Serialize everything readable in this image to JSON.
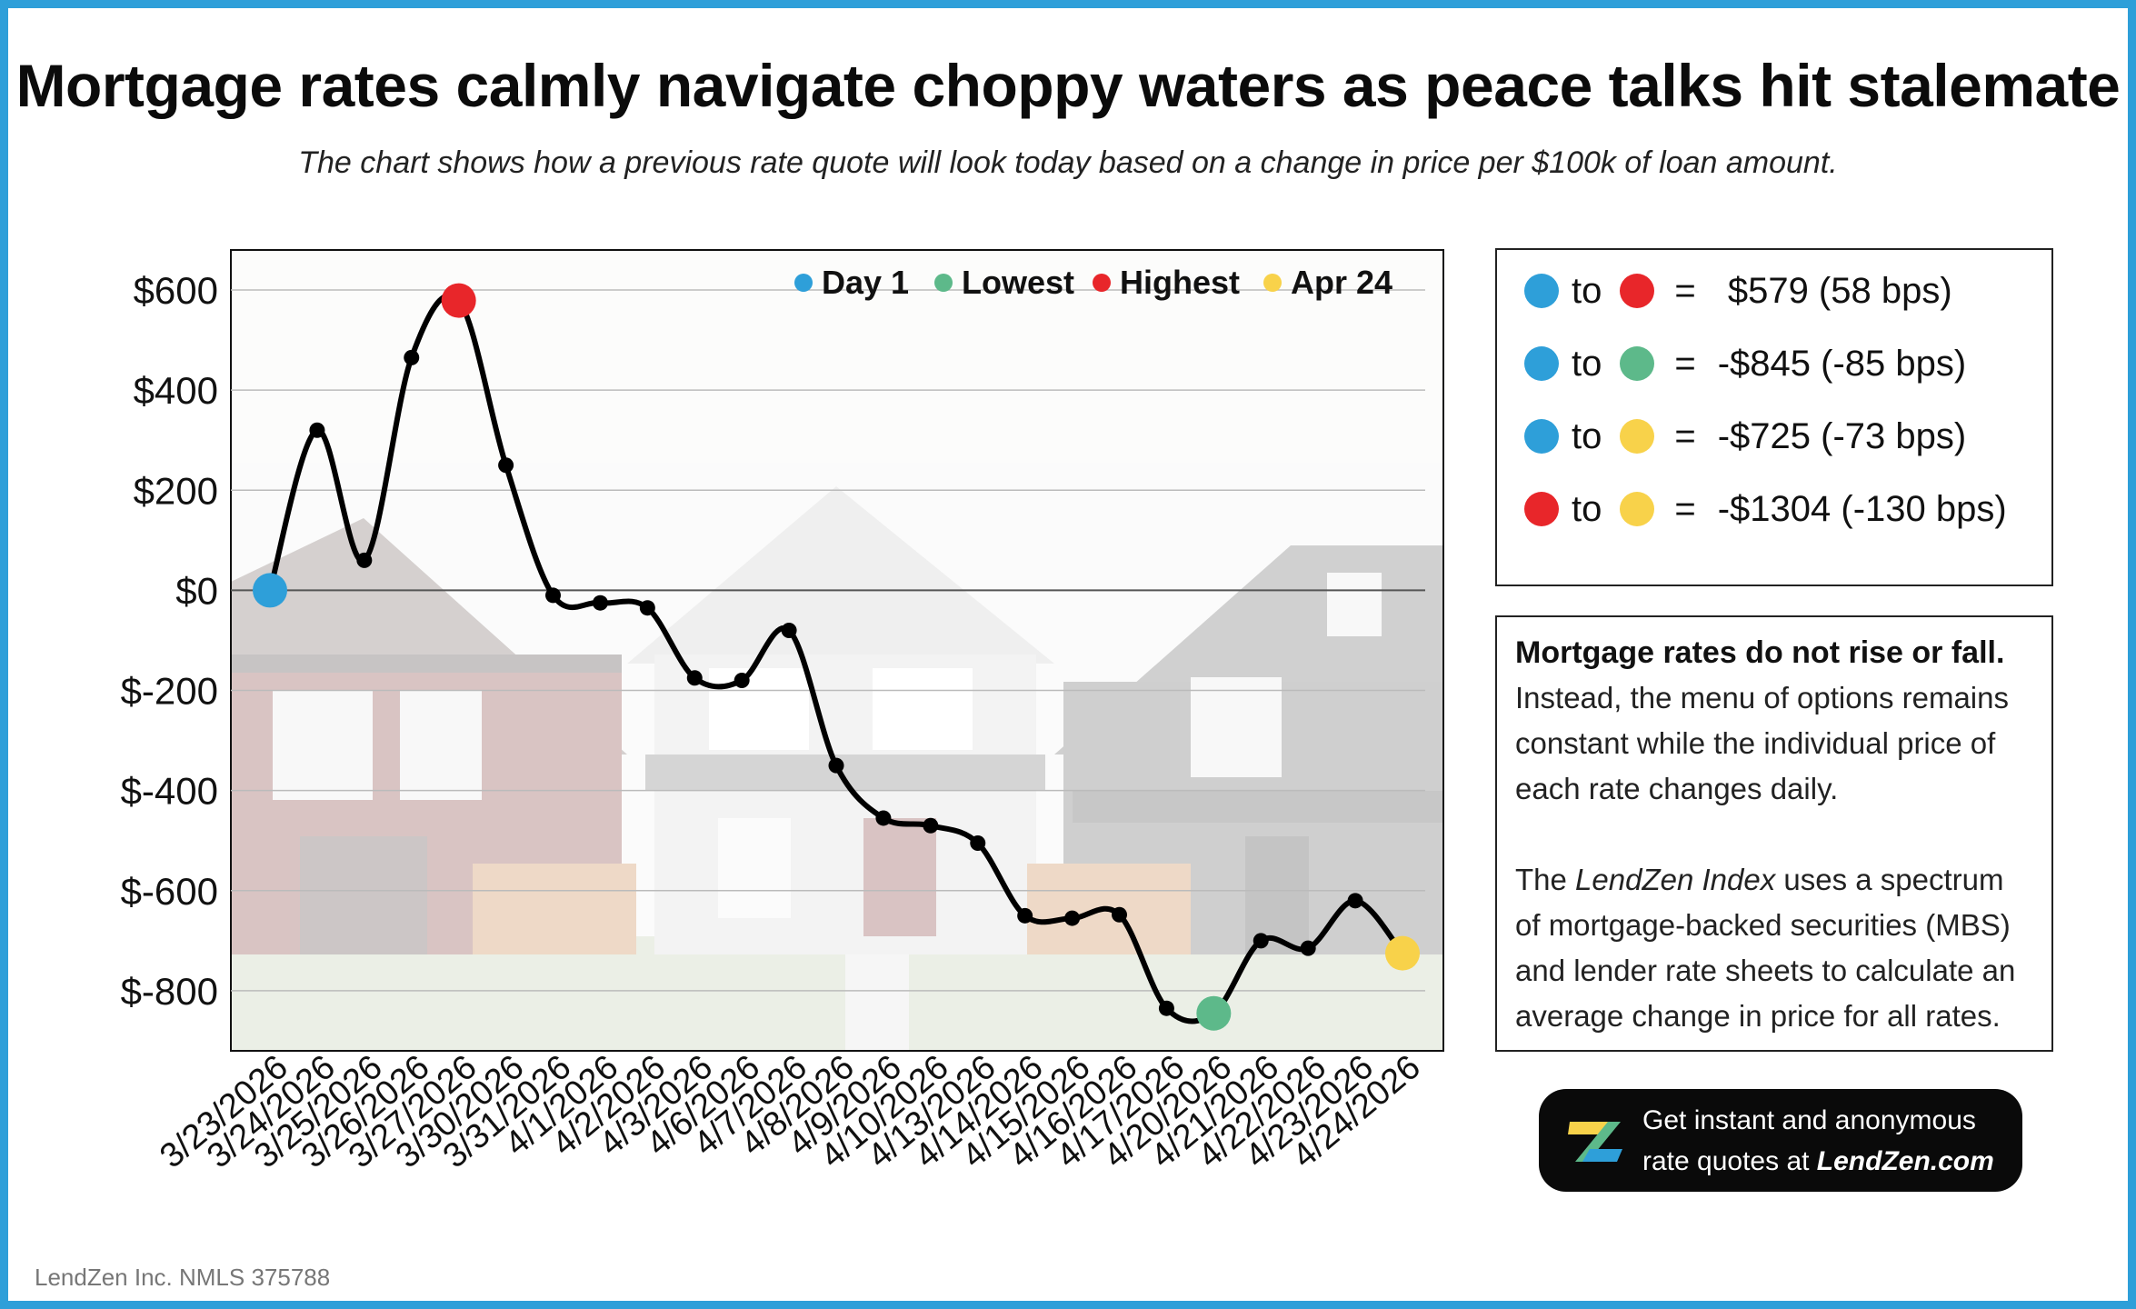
{
  "title": "Mortgage rates calmly navigate choppy waters as peace talks hit stalemate",
  "subtitle": "The chart shows how a previous rate quote will look today based on a change in price per $100k of loan amount.",
  "colors": {
    "day1": "#2e9fd9",
    "lowest": "#5db98a",
    "highest": "#e8262a",
    "latest": "#f8d24a",
    "border": "#2e9fd9"
  },
  "chart_data": {
    "type": "line",
    "categories": [
      "3/23/2026",
      "3/24/2026",
      "3/25/2026",
      "3/26/2026",
      "3/27/2026",
      "3/30/2026",
      "3/31/2026",
      "4/1/2026",
      "4/2/2026",
      "4/3/2026",
      "4/6/2026",
      "4/7/2026",
      "4/8/2026",
      "4/9/2026",
      "4/10/2026",
      "4/13/2026",
      "4/14/2026",
      "4/15/2026",
      "4/16/2026",
      "4/17/2026",
      "4/20/2026",
      "4/21/2026",
      "4/22/2026",
      "4/23/2026",
      "4/24/2026"
    ],
    "values": [
      0,
      320,
      60,
      465,
      579,
      250,
      -10,
      -25,
      -35,
      -175,
      -180,
      -80,
      -350,
      -455,
      -470,
      -505,
      -650,
      -655,
      -648,
      -835,
      -845,
      -700,
      -715,
      -620,
      -725
    ],
    "ylim": [
      -920,
      680
    ],
    "yticks": [
      600,
      400,
      200,
      0,
      -200,
      -400,
      -600,
      -800
    ],
    "ytick_labels": [
      "$600",
      "$400",
      "$200",
      "$0",
      "$-200",
      "$-400",
      "$-600",
      "$-800"
    ],
    "grid": true,
    "legend_position": "top-right",
    "legend": [
      {
        "label": "Day 1",
        "color": "#2e9fd9"
      },
      {
        "label": "Lowest",
        "color": "#5db98a"
      },
      {
        "label": "Highest",
        "color": "#e8262a"
      },
      {
        "label": "Apr 24",
        "color": "#f8d24a"
      }
    ],
    "highlights": [
      {
        "index": 0,
        "color": "#2e9fd9"
      },
      {
        "index": 4,
        "color": "#e8262a"
      },
      {
        "index": 20,
        "color": "#5db98a"
      },
      {
        "index": 24,
        "color": "#f8d24a"
      }
    ]
  },
  "summary": {
    "to_label": "to",
    "eq_label": "=",
    "rows": [
      {
        "from": "#2e9fd9",
        "to": "#e8262a",
        "value": " $579 (58 bps)"
      },
      {
        "from": "#2e9fd9",
        "to": "#5db98a",
        "value": "-$845 (-85 bps)"
      },
      {
        "from": "#2e9fd9",
        "to": "#f8d24a",
        "value": "-$725 (-73 bps)"
      },
      {
        "from": "#e8262a",
        "to": "#f8d24a",
        "value": "-$1304 (-130 bps)"
      }
    ]
  },
  "info": {
    "heading": "Mortgage rates do not rise or fall.",
    "p1": "Instead, the menu of options remains constant while the individual price of each rate changes daily.",
    "p2_pre": "The ",
    "p2_em": "LendZen Index",
    "p2_post": " uses a spectrum of mortgage-backed securities (MBS) and lender rate sheets to calculate an average change in price for all rates."
  },
  "cta": {
    "line1": "Get instant and anonymous",
    "line2_pre": "rate quotes at ",
    "line2_site": "LendZen.com"
  },
  "footer": "LendZen Inc. NMLS 375788"
}
